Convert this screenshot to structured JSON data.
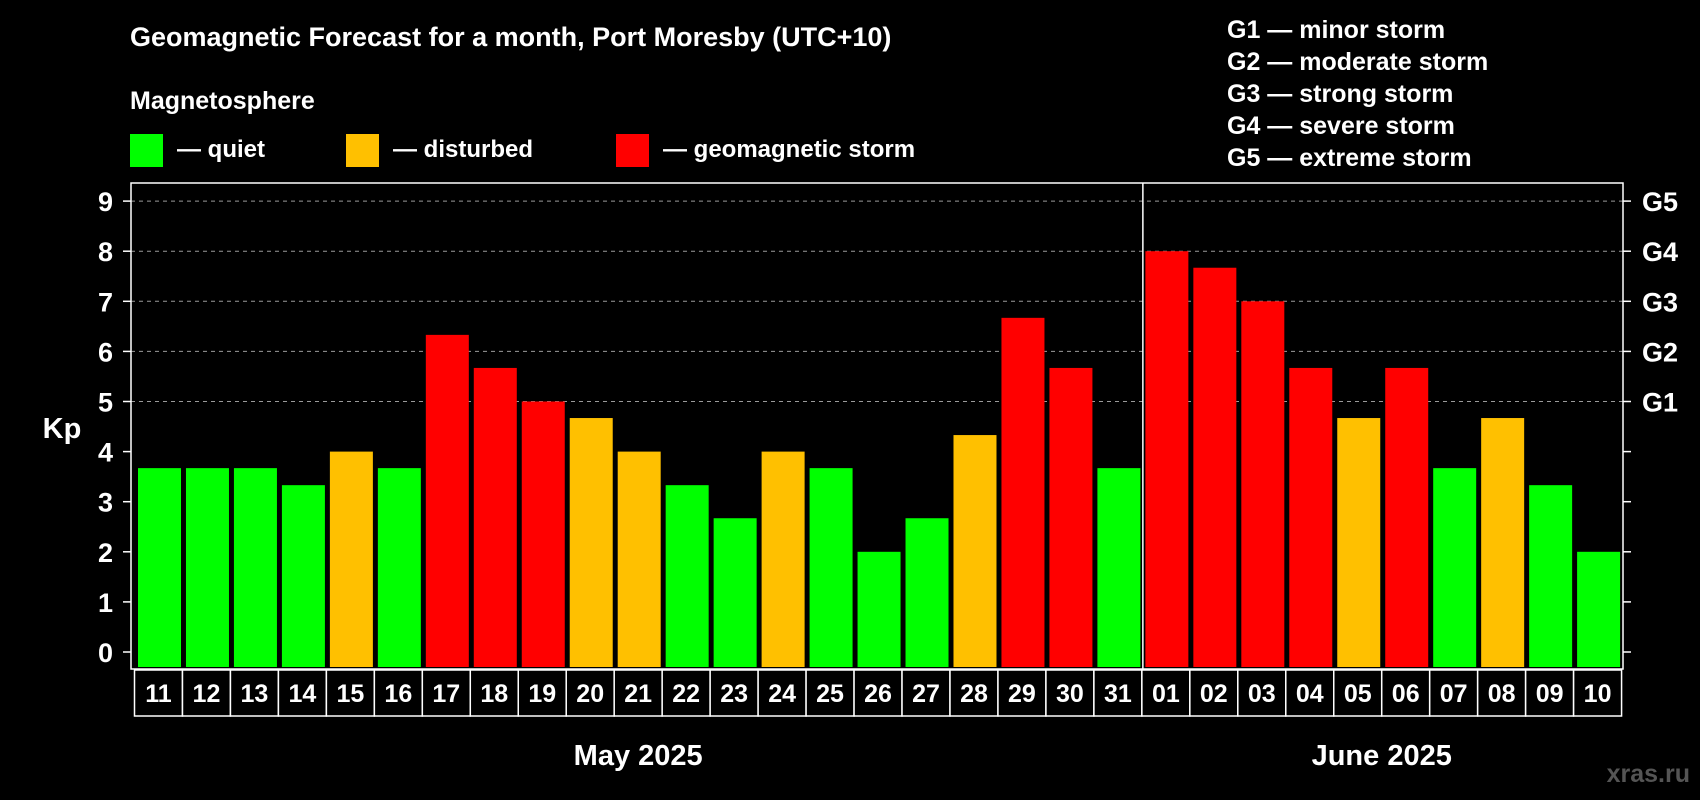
{
  "chart_data": {
    "type": "bar",
    "title": "Geomagnetic Forecast for a month, Port Moresby (UTC+10)",
    "ylabel": "Kp",
    "ylim": [
      0,
      9
    ],
    "yticks": [
      0,
      1,
      2,
      3,
      4,
      5,
      6,
      7,
      8,
      9
    ],
    "grid": "dashed horizontal lines at 5, 6, 7, 8, 9",
    "right_axis_labels": [
      {
        "kp": 5,
        "label": "G1"
      },
      {
        "kp": 6,
        "label": "G2"
      },
      {
        "kp": 7,
        "label": "G3"
      },
      {
        "kp": 8,
        "label": "G4"
      },
      {
        "kp": 9,
        "label": "G5"
      }
    ],
    "legend": {
      "title": "Magnetosphere",
      "items": [
        {
          "label": "— quiet",
          "color": "#00ff00"
        },
        {
          "label": "— disturbed",
          "color": "#ffc000"
        },
        {
          "label": "— geomagnetic storm",
          "color": "#ff0000"
        }
      ]
    },
    "storm_scale": [
      "G1 — minor storm",
      "G2 — moderate storm",
      "G3 — strong storm",
      "G4 — severe storm",
      "G5 — extreme storm"
    ],
    "months": [
      "May 2025",
      "June 2025"
    ],
    "month_split_after": "31",
    "categories": [
      "11",
      "12",
      "13",
      "14",
      "15",
      "16",
      "17",
      "18",
      "19",
      "20",
      "21",
      "22",
      "23",
      "24",
      "25",
      "26",
      "27",
      "28",
      "29",
      "30",
      "31",
      "01",
      "02",
      "03",
      "04",
      "05",
      "06",
      "07",
      "08",
      "09",
      "10"
    ],
    "values": [
      3.67,
      3.67,
      3.67,
      3.33,
      4.0,
      3.67,
      6.33,
      5.67,
      5.0,
      4.67,
      4.0,
      3.33,
      2.67,
      4.0,
      3.67,
      2.0,
      2.67,
      4.33,
      6.67,
      5.67,
      3.67,
      8.0,
      7.67,
      7.0,
      5.67,
      4.67,
      5.67,
      3.67,
      4.67,
      3.33,
      2.0
    ],
    "levels": [
      "quiet",
      "quiet",
      "quiet",
      "quiet",
      "disturbed",
      "quiet",
      "storm",
      "storm",
      "storm",
      "disturbed",
      "disturbed",
      "quiet",
      "quiet",
      "disturbed",
      "quiet",
      "quiet",
      "quiet",
      "disturbed",
      "storm",
      "storm",
      "quiet",
      "storm",
      "storm",
      "storm",
      "storm",
      "disturbed",
      "storm",
      "quiet",
      "disturbed",
      "quiet",
      "quiet"
    ],
    "level_colors": {
      "quiet": "#00ff00",
      "disturbed": "#ffc000",
      "storm": "#ff0000"
    }
  },
  "watermark": "xras.ru"
}
